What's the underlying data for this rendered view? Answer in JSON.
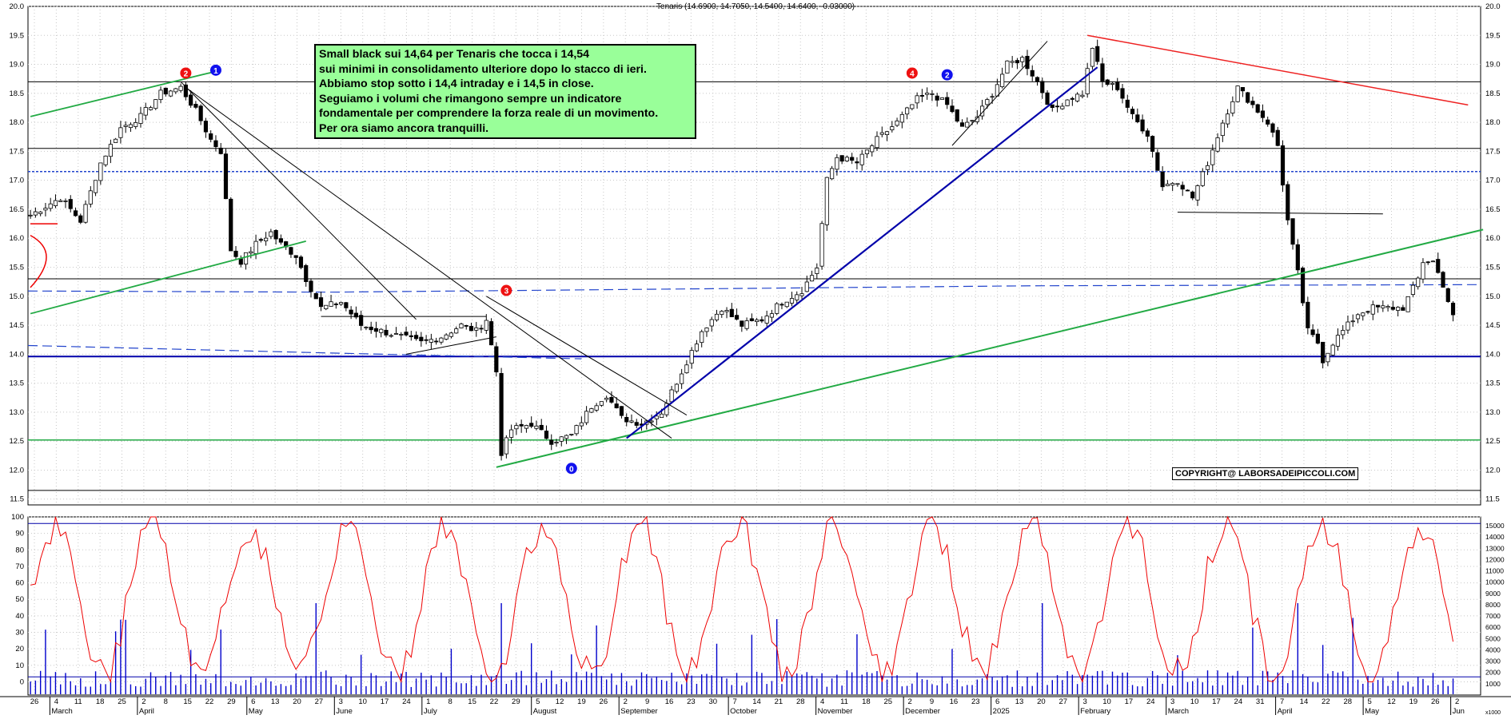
{
  "header": {
    "title": "Tenaris (14.6900, 14.7050, 14.5400, 14.6400, -0.03000)"
  },
  "annotation_box": {
    "lines": [
      "Small black sui 14,64 per  Tenaris che tocca i 14,54",
      "sui minimi in consolidamento ulteriore dopo lo stacco di ieri.",
      "Abbiamo stop sotto i 14,4 intraday e i 14,5 in close.",
      "Seguiamo i volumi che rimangono sempre un indicatore",
      "fondamentale per comprendere la forza reale di un movimento.",
      "Per ora siamo ancora tranquilli."
    ]
  },
  "copyright": "COPYRIGHT@ LABORSADEIPICCOLI.COM",
  "chart_data": [
    {
      "type": "candlestick",
      "yticks": [
        "11.5",
        "12.0",
        "12.5",
        "13.0",
        "13.5",
        "14.0",
        "14.5",
        "15.0",
        "15.5",
        "16.0",
        "16.5",
        "17.0",
        "17.5",
        "18.0",
        "18.5",
        "19.0",
        "19.5",
        "20.0"
      ],
      "ylim": [
        11.4,
        20.0
      ],
      "grid": true,
      "last_bar": {
        "open": 14.69,
        "high": 14.705,
        "low": 14.54,
        "close": 14.64
      },
      "price_path": [
        [
          0,
          16.4
        ],
        [
          6,
          16.7
        ],
        [
          10,
          16.3
        ],
        [
          14,
          17.3
        ],
        [
          18,
          17.9
        ],
        [
          22,
          18.1
        ],
        [
          26,
          18.5
        ],
        [
          30,
          18.6
        ],
        [
          33,
          18.2
        ],
        [
          36,
          17.7
        ],
        [
          38,
          17.5
        ],
        [
          40,
          15.8
        ],
        [
          42,
          15.6
        ],
        [
          45,
          15.9
        ],
        [
          48,
          16.1
        ],
        [
          50,
          15.9
        ],
        [
          53,
          15.7
        ],
        [
          55,
          15.3
        ],
        [
          58,
          14.8
        ],
        [
          62,
          14.9
        ],
        [
          66,
          14.5
        ],
        [
          70,
          14.4
        ],
        [
          74,
          14.3
        ],
        [
          78,
          14.2
        ],
        [
          82,
          14.3
        ],
        [
          86,
          14.5
        ],
        [
          89,
          14.4
        ],
        [
          91,
          14.6
        ],
        [
          93,
          13.7
        ],
        [
          94,
          12.3
        ],
        [
          96,
          12.7
        ],
        [
          100,
          12.8
        ],
        [
          104,
          12.5
        ],
        [
          108,
          12.6
        ],
        [
          112,
          13.1
        ],
        [
          115,
          13.3
        ],
        [
          118,
          12.9
        ],
        [
          122,
          12.8
        ],
        [
          126,
          13.0
        ],
        [
          130,
          13.7
        ],
        [
          134,
          14.4
        ],
        [
          138,
          14.8
        ],
        [
          142,
          14.5
        ],
        [
          146,
          14.6
        ],
        [
          150,
          14.9
        ],
        [
          154,
          15.1
        ],
        [
          157,
          15.5
        ],
        [
          159,
          17.0
        ],
        [
          161,
          17.4
        ],
        [
          165,
          17.3
        ],
        [
          169,
          17.7
        ],
        [
          173,
          18.0
        ],
        [
          177,
          18.4
        ],
        [
          180,
          18.5
        ],
        [
          183,
          18.3
        ],
        [
          186,
          17.9
        ],
        [
          189,
          18.1
        ],
        [
          192,
          18.5
        ],
        [
          195,
          19.0
        ],
        [
          198,
          19.1
        ],
        [
          201,
          18.7
        ],
        [
          204,
          18.2
        ],
        [
          207,
          18.4
        ],
        [
          210,
          18.5
        ],
        [
          212,
          19.3
        ],
        [
          214,
          18.7
        ],
        [
          217,
          18.6
        ],
        [
          220,
          18.1
        ],
        [
          223,
          17.8
        ],
        [
          226,
          16.9
        ],
        [
          229,
          17.0
        ],
        [
          232,
          16.7
        ],
        [
          235,
          17.3
        ],
        [
          238,
          18.0
        ],
        [
          241,
          18.6
        ],
        [
          244,
          18.3
        ],
        [
          247,
          18.0
        ],
        [
          249,
          17.6
        ],
        [
          251,
          16.3
        ],
        [
          253,
          15.4
        ],
        [
          255,
          14.4
        ],
        [
          257,
          14.2
        ],
        [
          258,
          13.9
        ],
        [
          260,
          14.2
        ],
        [
          262,
          14.4
        ],
        [
          265,
          14.7
        ],
        [
          268,
          14.8
        ],
        [
          271,
          14.8
        ],
        [
          274,
          14.8
        ],
        [
          277,
          15.3
        ],
        [
          278,
          15.6
        ],
        [
          280,
          15.6
        ],
        [
          282,
          15.2
        ],
        [
          284,
          14.64
        ]
      ],
      "horizontal_levels": [
        11.65,
        12.52,
        13.96,
        15.3,
        17.15,
        17.55,
        18.7
      ],
      "xtick_days": [
        "26",
        "4",
        "11",
        "18",
        "25",
        "2",
        "8",
        "15",
        "22",
        "29",
        "6",
        "13",
        "20",
        "27",
        "3",
        "10",
        "17",
        "24",
        "1",
        "8",
        "15",
        "22",
        "29",
        "5",
        "12",
        "19",
        "26",
        "2",
        "9",
        "16",
        "23",
        "30",
        "7",
        "14",
        "21",
        "28",
        "4",
        "11",
        "18",
        "25",
        "2",
        "9",
        "16",
        "23",
        "6",
        "13",
        "20",
        "27",
        "3",
        "10",
        "17",
        "24",
        "3",
        "10",
        "17",
        "24",
        "31",
        "7",
        "14",
        "22",
        "28",
        "5",
        "12",
        "19",
        "26",
        "2"
      ],
      "months": [
        "March",
        "April",
        "May",
        "June",
        "July",
        "August",
        "September",
        "October",
        "November",
        "December",
        "2025",
        "February",
        "March",
        "April",
        "May",
        "Jun"
      ],
      "markers": [
        {
          "label": "2",
          "color": "#ee1111"
        },
        {
          "label": "1",
          "color": "#1111ee"
        },
        {
          "label": "3",
          "color": "#ee1111"
        },
        {
          "label": "0",
          "color": "#1111ee"
        },
        {
          "label": "4",
          "color": "#ee1111"
        },
        {
          "label": "2",
          "color": "#1111ee"
        }
      ]
    },
    {
      "type": "line+bar",
      "oscillator": {
        "yticks": [
          "0",
          "10",
          "20",
          "30",
          "40",
          "50",
          "60",
          "70",
          "80",
          "90",
          "100"
        ],
        "ylim": [
          -8,
          100
        ],
        "color": "#ee0000",
        "ref_levels": [
          96,
          3
        ]
      },
      "volume": {
        "yticks": [
          "1000",
          "2000",
          "3000",
          "4000",
          "5000",
          "6000",
          "7000",
          "8000",
          "9000",
          "10000",
          "11000",
          "12000",
          "13000",
          "14000",
          "15000"
        ],
        "unit_label": "x1000",
        "color": "#0000cc"
      }
    }
  ],
  "colors": {
    "bg": "#ffffff",
    "grid": "#c8c8c8",
    "green_line": "#22aa44",
    "blue_line": "#0000aa",
    "red_line": "#ee2222",
    "dashed_blue": "#2244cc"
  }
}
